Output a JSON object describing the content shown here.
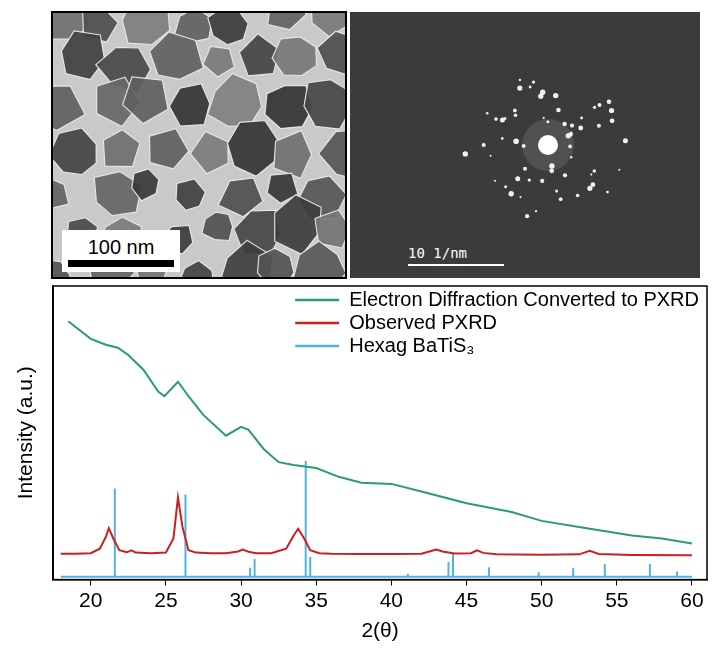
{
  "images": [
    {
      "scale_bar": "100 nm"
    },
    {
      "scale_bar": "10 1/nm"
    }
  ],
  "chart_data": {
    "type": "line",
    "x_label": "2(θ)",
    "y_label": "Intensity (a.u.)",
    "xlim": [
      17.5,
      61
    ],
    "xticks": [
      20,
      25,
      30,
      35,
      40,
      45,
      50,
      55,
      60
    ],
    "ylim": [
      0,
      100
    ],
    "tick_labels": "x",
    "grid": false,
    "legend": "upper right",
    "series": [
      {
        "name": "Electron Diffraction Converted to PXRD",
        "color": "#2a9d6e",
        "x": [
          18.5,
          20,
          21,
          21.8,
          22.5,
          23.5,
          24.5,
          24.9,
          25.8,
          26.5,
          27.5,
          29,
          30,
          30.5,
          31.5,
          32.5,
          33.5,
          35,
          36.5,
          38,
          40,
          42,
          45,
          48,
          50,
          53,
          56,
          58,
          60
        ],
        "values": [
          88,
          82,
          80,
          79,
          76.5,
          71.5,
          64,
          62.5,
          67.4,
          62.5,
          56,
          49,
          52,
          51,
          44.5,
          40,
          39,
          38,
          35,
          33,
          32.6,
          30,
          26,
          23,
          20,
          17.5,
          15,
          14,
          12.3
        ]
      },
      {
        "name": "Observed PXRD",
        "color": "#cc1f1f",
        "x": [
          18,
          19,
          20,
          20.6,
          21,
          21.2,
          21.5,
          21.9,
          22.4,
          22.7,
          23,
          24,
          25,
          25.5,
          25.8,
          26.1,
          26.5,
          27,
          28,
          29,
          29.8,
          30.1,
          30.5,
          31,
          32,
          33,
          33.5,
          33.8,
          34.2,
          34.6,
          35.2,
          36,
          38,
          40,
          42,
          42.7,
          43,
          43.4,
          44.2,
          45.3,
          45.7,
          46.1,
          47,
          50,
          52.5,
          53.2,
          53.8,
          56,
          60
        ],
        "values": [
          8.8,
          8.8,
          9,
          10.5,
          14.5,
          17.5,
          14,
          10,
          9.3,
          10,
          9.2,
          9,
          9.2,
          14,
          28,
          18,
          10,
          9.2,
          9,
          9,
          9.6,
          10.2,
          9.5,
          9,
          9,
          10.5,
          15,
          17.3,
          14,
          10,
          9,
          8.8,
          8.7,
          8.7,
          8.8,
          9.8,
          10.2,
          9.6,
          8.9,
          9,
          10,
          9.1,
          8.6,
          8.5,
          8.6,
          9.8,
          8.7,
          8.4,
          8.3
        ]
      },
      {
        "name": "Hexag BaTiS₃",
        "color": "#4fb3e6",
        "x": [
          18,
          21.6,
          21.6,
          21.6,
          26.3,
          26.3,
          26.3,
          30.6,
          30.6,
          30.6,
          30.9,
          30.9,
          30.9,
          34.3,
          34.3,
          34.3,
          34.6,
          34.6,
          34.6,
          41.1,
          41.1,
          41.1,
          43.8,
          43.8,
          43.8,
          44.1,
          44.1,
          44.1,
          46.5,
          46.5,
          46.5,
          49.8,
          49.8,
          49.8,
          52.1,
          52.1,
          52.1,
          54.2,
          54.2,
          54.2,
          57.2,
          57.2,
          57.2,
          59,
          59,
          59,
          60
        ],
        "values": [
          1,
          1,
          31,
          1,
          1,
          29,
          1,
          1,
          4,
          1,
          1,
          7,
          1,
          1,
          40.4,
          1,
          1,
          7.7,
          1,
          1,
          2,
          1,
          1,
          6,
          1,
          1,
          8.8,
          1,
          1,
          4.2,
          1,
          1,
          2.5,
          1,
          1,
          4,
          1,
          1,
          5.3,
          1,
          1,
          5.3,
          1,
          1,
          2.8,
          1,
          1
        ]
      }
    ]
  }
}
